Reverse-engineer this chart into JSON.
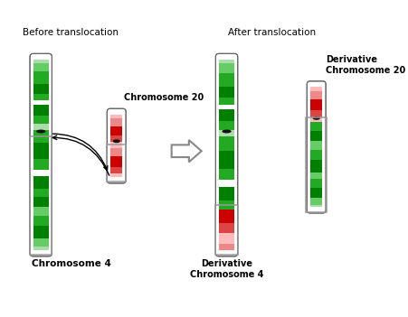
{
  "title_left": "Before translocation",
  "title_right": "After translocation",
  "bg_color": "#ffffff",
  "chr4_label": "Chromosome 4",
  "chr20_label": "Chromosome 20",
  "der4_label": "Derivative\nChromosome 4",
  "der20_label": "Derivative\nChromosome 20",
  "gd": "#008000",
  "gm": "#22aa22",
  "gl": "#66cc66",
  "gp": "#aaddaa",
  "gw": "#cceecc",
  "rd": "#cc0000",
  "rm": "#dd4444",
  "rl": "#ee8888",
  "rp": "#ffbbbb",
  "white": "#ffffff",
  "black": "#111111",
  "outline": "#666666",
  "box_color": "#999999"
}
